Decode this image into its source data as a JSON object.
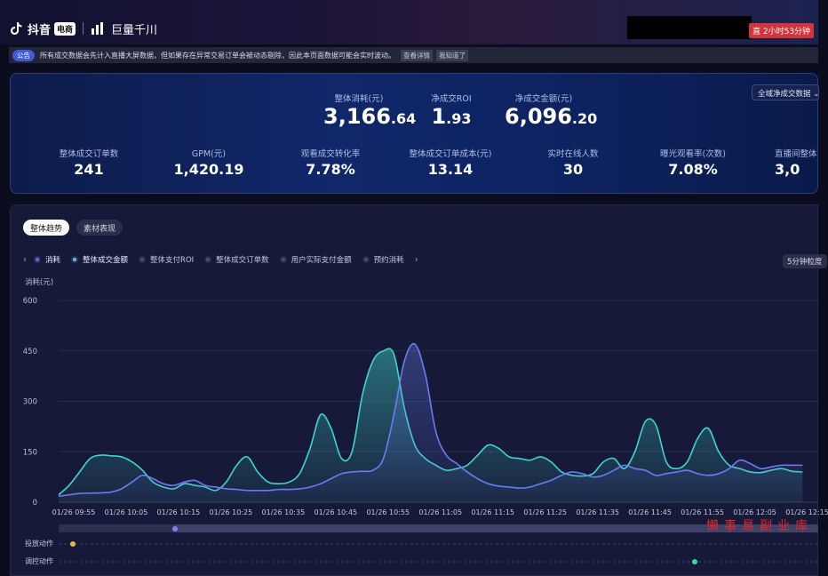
{
  "brand": {
    "douyin": "抖音",
    "douyin_tag": "电商",
    "qianchuan": "巨量千川"
  },
  "timer": "直 2小时53分钟",
  "notice": {
    "badge": "公告",
    "text": "所有成交数据会先计入直播大屏数据，但如果存在异常交易订单会被动态剔除，因此本页面数据可能会实时波动。",
    "link1": "查看详情",
    "link2": "我知道了"
  },
  "kpi": {
    "select": "全域净成交数据",
    "top": [
      {
        "label": "整体消耗(元)",
        "int": "3,166",
        "dec": ".64"
      },
      {
        "label": "净成交ROI",
        "int": "1",
        "dec": ".93"
      },
      {
        "label": "净成交金额(元)",
        "int": "6,096",
        "dec": ".20"
      }
    ],
    "row": [
      {
        "label": "整体成交订单数",
        "value": "241"
      },
      {
        "label": "GPM(元)",
        "value": "1,420.19"
      },
      {
        "label": "观看成交转化率",
        "value": "7.78%"
      },
      {
        "label": "整体成交订单成本(元)",
        "value": "13.14"
      },
      {
        "label": "实时在线人数",
        "value": "30"
      },
      {
        "label": "曝光观看率(次数)",
        "value": "7.08%"
      },
      {
        "label": "直播间整体",
        "value": "3,0"
      }
    ]
  },
  "tabs": {
    "active": "整体趋势",
    "inactive": "素材表现"
  },
  "legend": {
    "items": [
      {
        "label": "消耗",
        "color": "#5b6de8",
        "active": true
      },
      {
        "label": "整体成交金额",
        "color": "#3fd6c8",
        "active": true
      },
      {
        "label": "整体支付ROI",
        "color": "#3a3e56",
        "active": false
      },
      {
        "label": "整体成交订单数",
        "color": "#3a3e56",
        "active": false
      },
      {
        "label": "用户实际支付金额",
        "color": "#3a3e56",
        "active": false
      },
      {
        "label": "预约消耗",
        "color": "#3a3e56",
        "active": false
      }
    ]
  },
  "granularity": "5分钟粒度",
  "action_rows": {
    "delivery": "投放动作",
    "control": "调控动作"
  },
  "watermark": "懒事易副业库",
  "chart_data": {
    "type": "area",
    "ylabel": "消耗(元)",
    "ylim": [
      0,
      600
    ],
    "yticks": [
      0,
      150,
      300,
      450,
      600
    ],
    "xticks": [
      "01/26 09:55",
      "01/26 10:05",
      "01/26 10:15",
      "01/26 10:25",
      "01/26 10:35",
      "01/26 10:45",
      "01/26 10:55",
      "01/26 11:05",
      "01/26 11:15",
      "01/26 11:25",
      "01/26 11:35",
      "01/26 11:45",
      "01/26 11:55",
      "01/26 12:05",
      "01/26 12:15"
    ],
    "x_minutes": [
      0,
      2,
      4,
      6,
      8,
      10,
      12,
      14,
      16,
      18,
      20,
      22,
      24,
      26,
      28,
      30,
      32,
      34,
      36,
      38,
      40,
      42,
      44,
      46,
      48,
      50,
      52,
      54,
      56,
      58,
      60,
      62,
      64,
      66,
      68,
      70,
      72,
      74,
      76,
      78,
      80,
      82,
      84,
      86,
      88,
      90,
      92,
      94,
      96,
      98,
      100,
      102,
      104,
      106,
      108,
      110,
      112,
      114,
      116,
      118,
      120,
      122,
      124,
      126,
      128,
      130,
      132,
      134,
      136,
      138,
      140,
      142
    ],
    "series": [
      {
        "name": "消耗",
        "color": "#6a7cf0",
        "values": [
          18,
          22,
          26,
          27,
          28,
          30,
          40,
          60,
          80,
          70,
          55,
          50,
          60,
          65,
          50,
          45,
          40,
          38,
          35,
          35,
          35,
          38,
          38,
          40,
          45,
          55,
          70,
          85,
          90,
          92,
          95,
          130,
          260,
          420,
          470,
          380,
          210,
          140,
          115,
          90,
          70,
          55,
          48,
          45,
          42,
          45,
          55,
          65,
          80,
          90,
          85,
          75,
          80,
          95,
          110,
          100,
          95,
          80,
          85,
          90,
          95,
          85,
          80,
          85,
          100,
          125,
          115,
          100,
          105,
          110,
          110,
          110
        ]
      },
      {
        "name": "整体成交金额",
        "color": "#3fd6c8",
        "values": [
          22,
          50,
          90,
          130,
          140,
          138,
          135,
          120,
          95,
          60,
          45,
          40,
          55,
          50,
          45,
          35,
          60,
          110,
          135,
          90,
          60,
          55,
          60,
          85,
          160,
          260,
          220,
          130,
          150,
          320,
          420,
          450,
          440,
          280,
          170,
          130,
          110,
          95,
          100,
          110,
          140,
          170,
          160,
          135,
          130,
          125,
          135,
          120,
          90,
          80,
          78,
          85,
          120,
          130,
          100,
          150,
          240,
          230,
          120,
          100,
          120,
          190,
          220,
          150,
          110,
          100,
          90,
          88,
          95,
          100,
          92,
          90
        ]
      }
    ]
  }
}
